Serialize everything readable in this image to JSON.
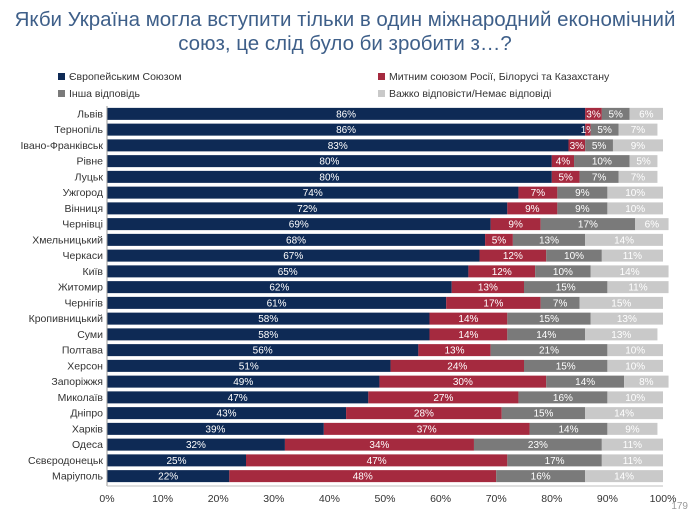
{
  "title_lines": [
    "Якби Україна могла вступити тільки в один міжнародний економічний",
    "союз, це слід було би зробити з…?"
  ],
  "page_number": "179",
  "chart_data": {
    "type": "bar",
    "orientation": "horizontal",
    "stacked": true,
    "normalized": true,
    "categories": [
      "Львів",
      "Тернопіль",
      "Івано-Франківськ",
      "Рівне",
      "Луцьк",
      "Ужгород",
      "Вінниця",
      "Чернівці",
      "Хмельницький",
      "Черкаси",
      "Київ",
      "Житомир",
      "Чернігів",
      "Кропивницький",
      "Суми",
      "Полтава",
      "Херсон",
      "Запоріжжя",
      "Миколаїв",
      "Дніпро",
      "Харків",
      "Одеса",
      "Сєвєродонецьк",
      "Маріуполь"
    ],
    "series": [
      {
        "name": "Європейським Союзом",
        "color": "#0e2a55",
        "label_color": "#ffffff",
        "values": [
          86,
          86,
          83,
          80,
          80,
          74,
          72,
          69,
          68,
          67,
          65,
          62,
          61,
          58,
          58,
          56,
          51,
          49,
          47,
          43,
          39,
          32,
          25,
          22
        ]
      },
      {
        "name": "Митним союзом Росії, Білорусі та Казахстану",
        "color": "#a52a3f",
        "label_color": "#ffffff",
        "values": [
          3,
          1,
          3,
          4,
          5,
          7,
          9,
          9,
          5,
          12,
          12,
          13,
          17,
          14,
          14,
          13,
          24,
          30,
          27,
          28,
          37,
          34,
          47,
          48
        ]
      },
      {
        "name": "Інша відповідь",
        "color": "#7a7a7a",
        "label_color": "#ffffff",
        "values": [
          5,
          5,
          5,
          10,
          7,
          9,
          9,
          17,
          13,
          10,
          10,
          15,
          7,
          15,
          14,
          21,
          15,
          14,
          16,
          15,
          14,
          23,
          17,
          16
        ]
      },
      {
        "name": "Важко відповісти/Немає відповіді",
        "color": "#c9c9c9",
        "label_color": "#ffffff",
        "values": [
          6,
          7,
          9,
          5,
          7,
          10,
          10,
          6,
          14,
          11,
          14,
          11,
          15,
          13,
          13,
          10,
          10,
          8,
          10,
          14,
          9,
          11,
          11,
          14
        ]
      }
    ],
    "value_suffix": "%",
    "xlim": [
      0,
      100
    ],
    "xticks": [
      "0%",
      "10%",
      "20%",
      "30%",
      "40%",
      "50%",
      "60%",
      "70%",
      "80%",
      "90%",
      "100%"
    ],
    "legend_position": "top",
    "grid": false
  }
}
